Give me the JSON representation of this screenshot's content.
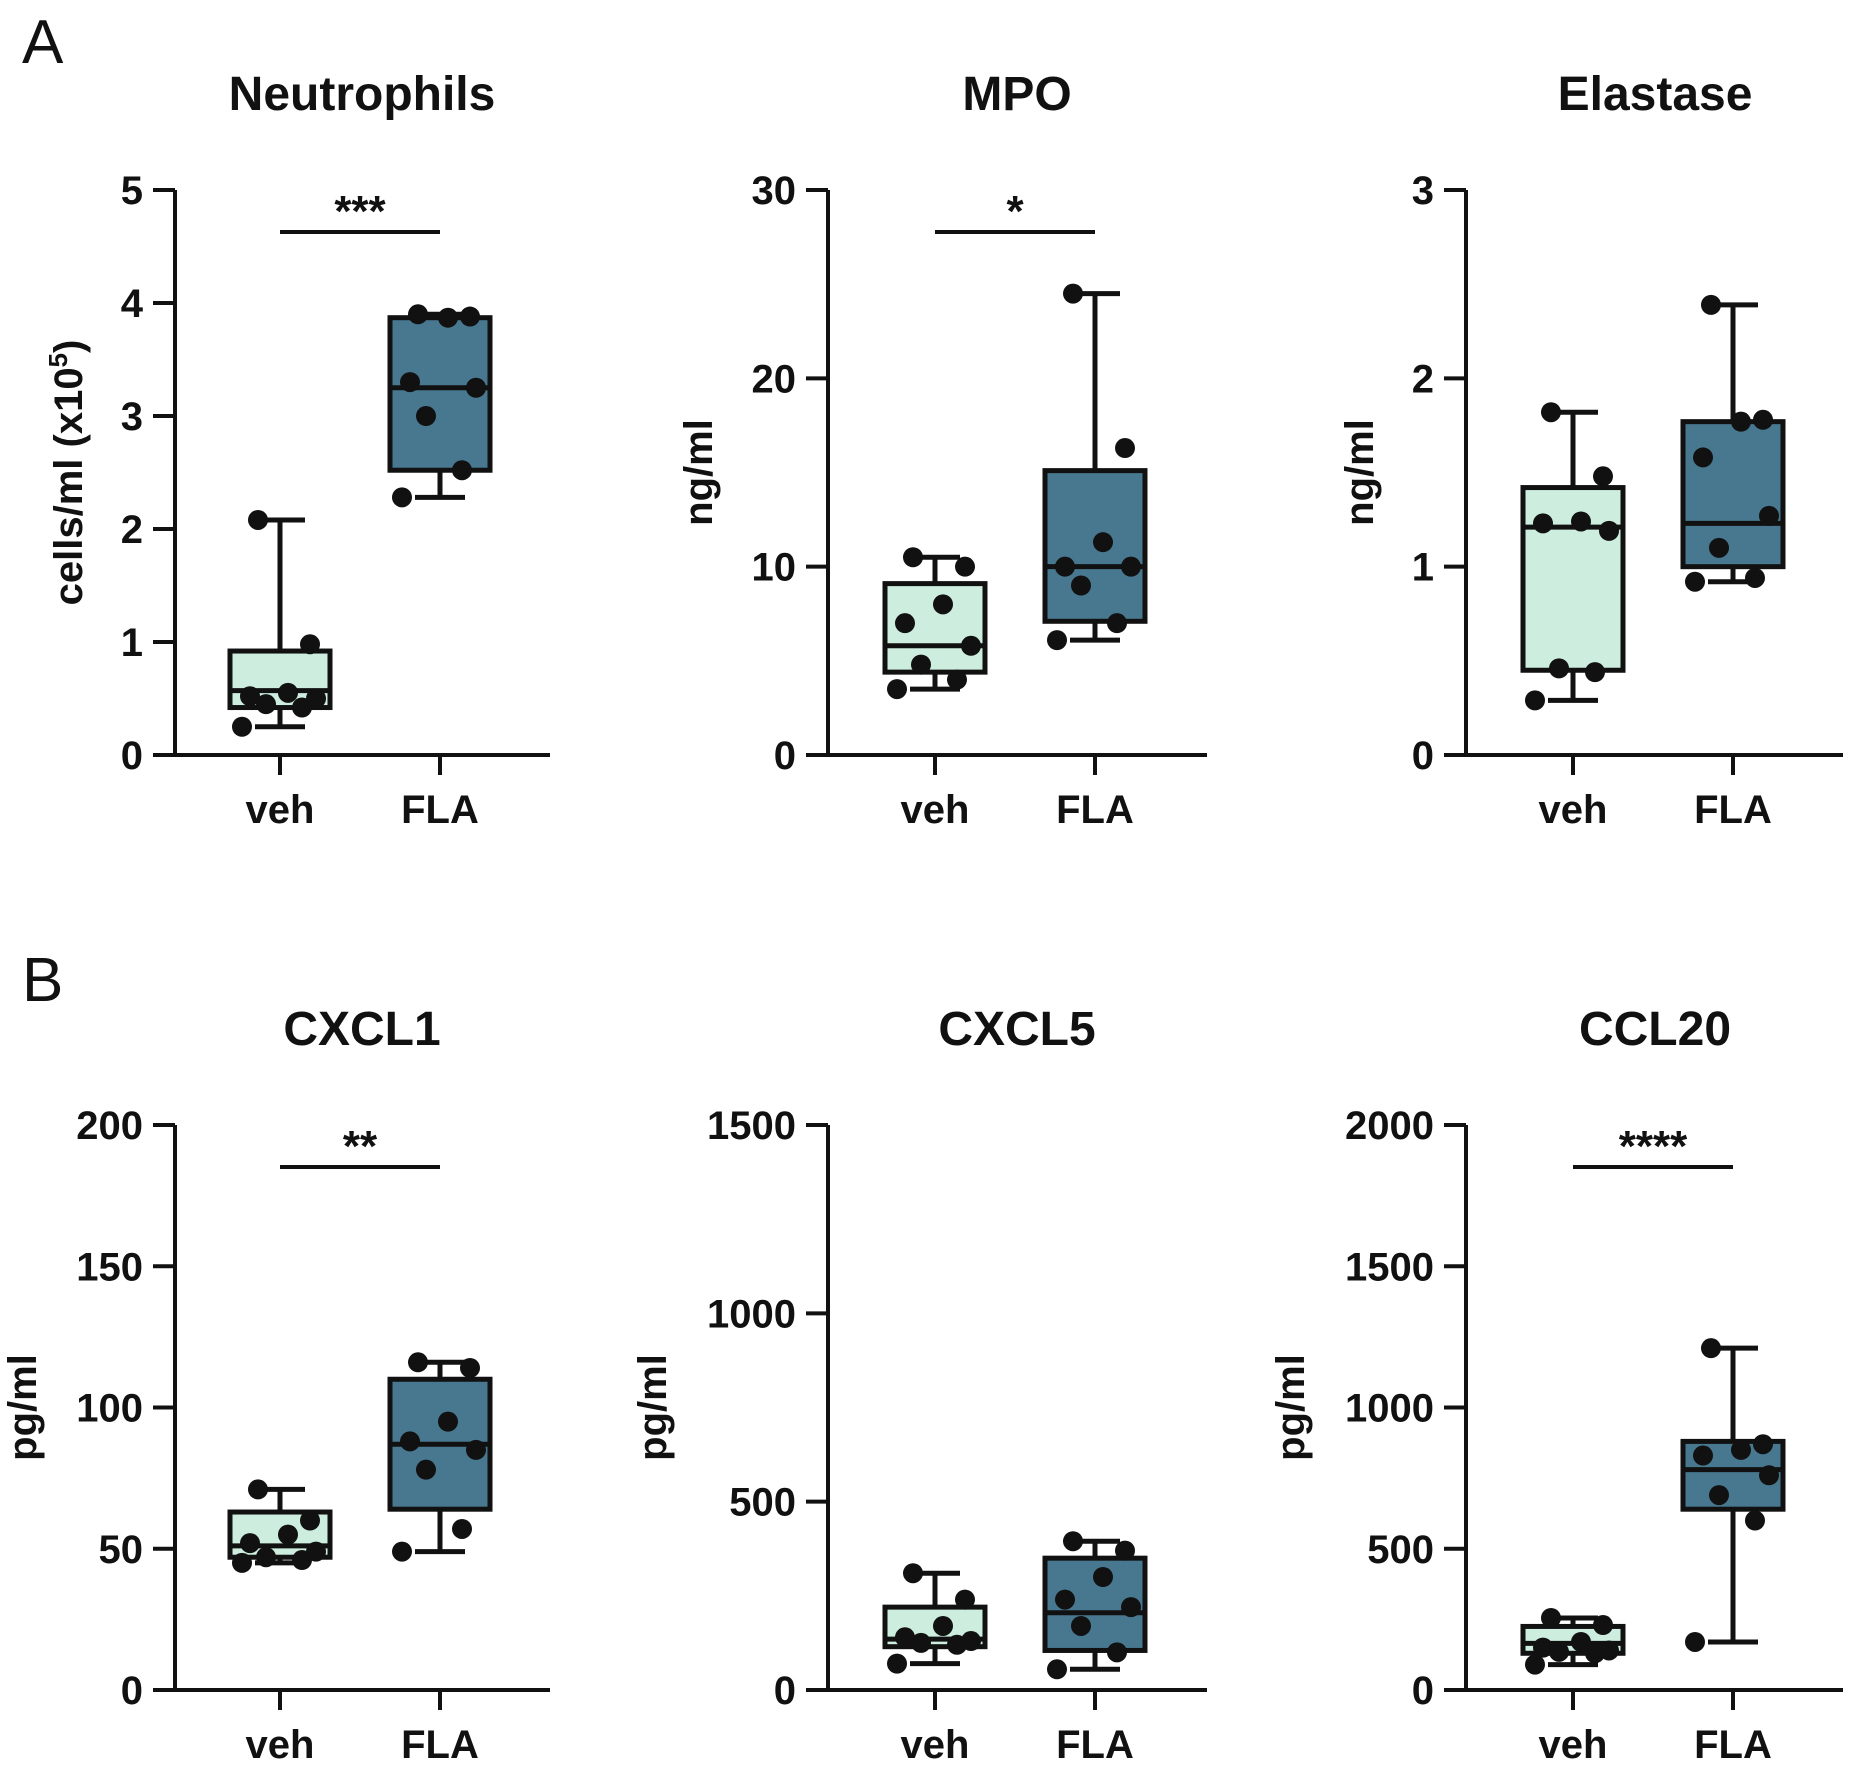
{
  "panels": {
    "a": "A",
    "b": "B"
  },
  "colors": {
    "veh": "#cdeede",
    "fla": "#48788f",
    "ink": "#111111"
  },
  "chart_data": [
    {
      "type": "box",
      "panel": "A",
      "title": "Neutrophils",
      "ylabel": "cells/ml (x10",
      "ylabel_sup": "5",
      "ylabel_suffix": ")",
      "ylim": [
        0,
        5
      ],
      "yticks": [
        0,
        1,
        2,
        3,
        4,
        5
      ],
      "ytick_labels": [
        "0",
        "1",
        "2",
        "3",
        "4",
        "5"
      ],
      "categories": [
        "veh",
        "FLA"
      ],
      "significance": "***",
      "series": [
        {
          "name": "veh",
          "whisker_low": 0.25,
          "q1": 0.42,
          "median": 0.57,
          "q3": 0.92,
          "whisker_high": 2.08,
          "points": [
            0.25,
            0.42,
            0.45,
            0.5,
            0.52,
            0.55,
            0.98,
            2.08
          ]
        },
        {
          "name": "FLA",
          "whisker_low": 2.28,
          "q1": 2.52,
          "median": 3.25,
          "q3": 3.87,
          "whisker_high": 3.9,
          "points": [
            2.28,
            2.52,
            3.0,
            3.25,
            3.3,
            3.87,
            3.88,
            3.9
          ]
        }
      ]
    },
    {
      "type": "box",
      "panel": "A",
      "title": "MPO",
      "ylabel": "ng/ml",
      "ylim": [
        0,
        30
      ],
      "yticks": [
        0,
        10,
        20,
        30
      ],
      "ytick_labels": [
        "0",
        "10",
        "20",
        "30"
      ],
      "categories": [
        "veh",
        "FLA"
      ],
      "significance": "*",
      "series": [
        {
          "name": "veh",
          "whisker_low": 3.5,
          "q1": 4.4,
          "median": 5.8,
          "q3": 9.1,
          "whisker_high": 10.5,
          "points": [
            3.5,
            4.0,
            4.8,
            5.8,
            7.0,
            8.0,
            10.0,
            10.5
          ]
        },
        {
          "name": "FLA",
          "whisker_low": 6.1,
          "q1": 7.1,
          "median": 10.0,
          "q3": 15.1,
          "whisker_high": 24.5,
          "points": [
            6.1,
            7.0,
            9.0,
            10.0,
            10.0,
            11.3,
            16.3,
            24.5
          ]
        }
      ]
    },
    {
      "type": "box",
      "panel": "A",
      "title": "Elastase",
      "ylabel": "ng/ml",
      "ylim": [
        0,
        3
      ],
      "yticks": [
        0,
        1,
        2,
        3
      ],
      "ytick_labels": [
        "0",
        "1",
        "2",
        "3"
      ],
      "categories": [
        "veh",
        "FLA"
      ],
      "significance": "",
      "series": [
        {
          "name": "veh",
          "whisker_low": 0.29,
          "q1": 0.45,
          "median": 1.21,
          "q3": 1.42,
          "whisker_high": 1.82,
          "points": [
            0.29,
            0.44,
            0.46,
            1.19,
            1.23,
            1.24,
            1.48,
            1.82
          ]
        },
        {
          "name": "FLA",
          "whisker_low": 0.92,
          "q1": 1.0,
          "median": 1.23,
          "q3": 1.77,
          "whisker_high": 2.39,
          "points": [
            0.92,
            0.94,
            1.1,
            1.27,
            1.58,
            1.77,
            1.78,
            2.39
          ]
        }
      ]
    },
    {
      "type": "box",
      "panel": "B",
      "title": "CXCL1",
      "ylabel": "pg/ml",
      "ylim": [
        0,
        200
      ],
      "yticks": [
        0,
        50,
        100,
        150,
        200
      ],
      "ytick_labels": [
        "0",
        "50",
        "100",
        "150",
        "200"
      ],
      "categories": [
        "veh",
        "FLA"
      ],
      "significance": "**",
      "series": [
        {
          "name": "veh",
          "whisker_low": 45,
          "q1": 47,
          "median": 51,
          "q3": 63,
          "whisker_high": 71,
          "points": [
            45,
            46,
            47,
            49,
            52,
            55,
            60,
            71
          ]
        },
        {
          "name": "FLA",
          "whisker_low": 49,
          "q1": 64,
          "median": 87,
          "q3": 110,
          "whisker_high": 116,
          "points": [
            49,
            57,
            78,
            85,
            88,
            95,
            114,
            116
          ]
        }
      ]
    },
    {
      "type": "box",
      "panel": "B",
      "title": "CXCL5",
      "ylabel": "pg/ml",
      "ylim": [
        0,
        1500
      ],
      "yticks": [
        0,
        500,
        1000,
        1500
      ],
      "ytick_labels": [
        "0",
        "500",
        "1000",
        "1500"
      ],
      "categories": [
        "veh",
        "FLA"
      ],
      "significance": "",
      "series": [
        {
          "name": "veh",
          "whisker_low": 70,
          "q1": 115,
          "median": 135,
          "q3": 220,
          "whisker_high": 310,
          "points": [
            70,
            120,
            125,
            130,
            140,
            170,
            240,
            310
          ]
        },
        {
          "name": "FLA",
          "whisker_low": 55,
          "q1": 105,
          "median": 205,
          "q3": 350,
          "whisker_high": 395,
          "points": [
            55,
            100,
            170,
            220,
            240,
            300,
            370,
            395
          ]
        }
      ]
    },
    {
      "type": "box",
      "panel": "B",
      "title": "CCL20",
      "ylabel": "pg/ml",
      "ylim": [
        0,
        2000
      ],
      "yticks": [
        0,
        500,
        1000,
        1500,
        2000
      ],
      "ytick_labels": [
        "0",
        "500",
        "1000",
        "1500",
        "2000"
      ],
      "categories": [
        "veh",
        "FLA"
      ],
      "significance": "****",
      "series": [
        {
          "name": "veh",
          "whisker_low": 90,
          "q1": 130,
          "median": 165,
          "q3": 225,
          "whisker_high": 255,
          "points": [
            90,
            130,
            135,
            140,
            150,
            170,
            230,
            255
          ]
        },
        {
          "name": "FLA",
          "whisker_low": 170,
          "q1": 640,
          "median": 780,
          "q3": 880,
          "whisker_high": 1210,
          "points": [
            170,
            600,
            690,
            760,
            830,
            850,
            870,
            1210
          ]
        }
      ]
    }
  ]
}
